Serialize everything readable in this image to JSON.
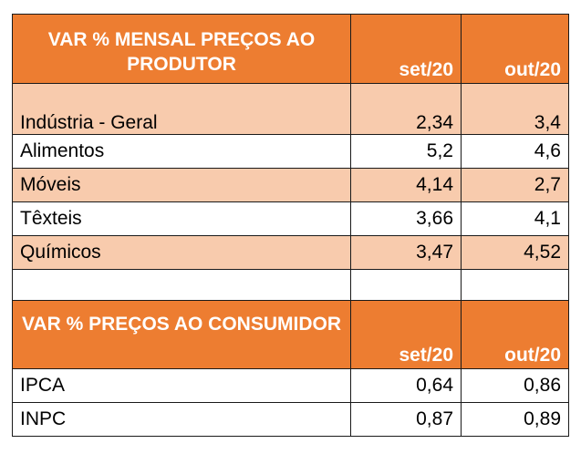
{
  "producer": {
    "title": "VAR % MENSAL PREÇOS AO PRODUTOR",
    "col1": "set/20",
    "col2": "out/20",
    "rows": [
      {
        "label": "Indústria - Geral",
        "set": "2,34",
        "out": "3,4"
      },
      {
        "label": "Alimentos",
        "set": "5,2",
        "out": "4,6"
      },
      {
        "label": "Móveis",
        "set": "4,14",
        "out": "2,7"
      },
      {
        "label": "Têxteis",
        "set": "3,66",
        "out": "4,1"
      },
      {
        "label": "Químicos",
        "set": "3,47",
        "out": "4,52"
      }
    ]
  },
  "consumer": {
    "title": "VAR % PREÇOS AO CONSUMIDOR",
    "col1": "set/20",
    "col2": "out/20",
    "rows": [
      {
        "label": "IPCA",
        "set": "0,64",
        "out": "0,86"
      },
      {
        "label": "INPC",
        "set": "0,87",
        "out": "0,89"
      }
    ]
  },
  "colors": {
    "header": "#ed7d31",
    "shade": "#f8cbad",
    "header_text": "#ffffff"
  }
}
